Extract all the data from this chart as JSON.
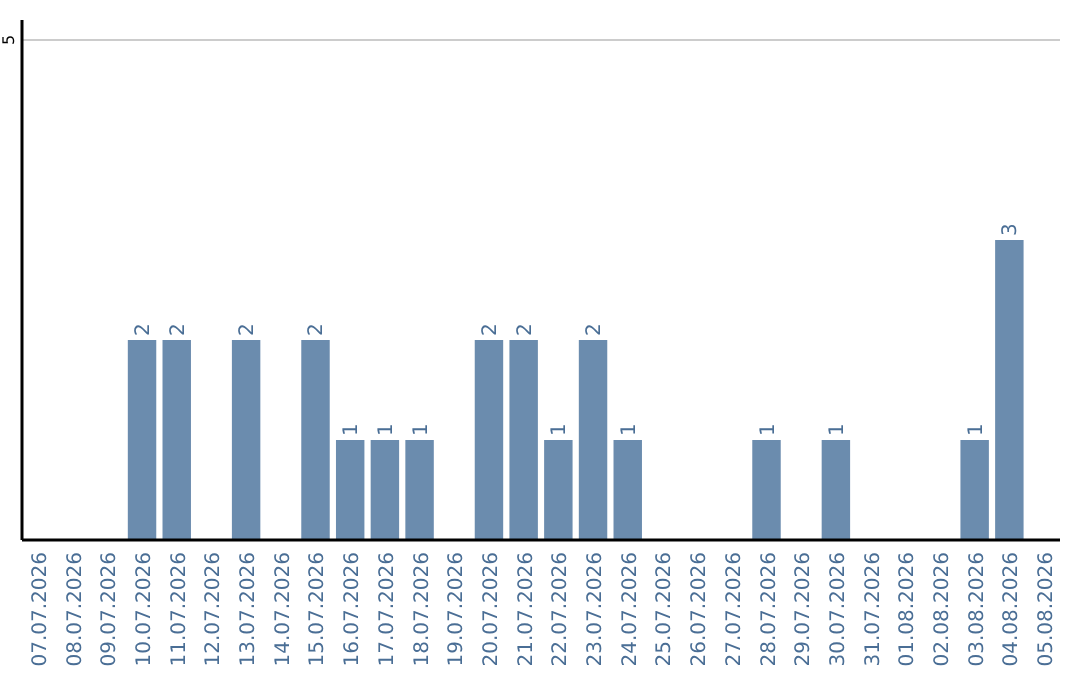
{
  "chart_data": {
    "type": "bar",
    "categories": [
      "07.07.2026",
      "08.07.2026",
      "09.07.2026",
      "10.07.2026",
      "11.07.2026",
      "12.07.2026",
      "13.07.2026",
      "14.07.2026",
      "15.07.2026",
      "16.07.2026",
      "17.07.2026",
      "18.07.2026",
      "19.07.2026",
      "20.07.2026",
      "21.07.2026",
      "22.07.2026",
      "23.07.2026",
      "24.07.2026",
      "25.07.2026",
      "26.07.2026",
      "27.07.2026",
      "28.07.2026",
      "29.07.2026",
      "30.07.2026",
      "31.07.2026",
      "01.08.2026",
      "02.08.2026",
      "03.08.2026",
      "04.08.2026",
      "05.08.2026"
    ],
    "values": [
      null,
      null,
      null,
      2,
      2,
      null,
      2,
      null,
      2,
      1,
      1,
      1,
      null,
      2,
      2,
      1,
      2,
      1,
      null,
      null,
      null,
      1,
      null,
      1,
      null,
      null,
      null,
      1,
      3,
      null
    ],
    "color": "#6b8cae",
    "ylim": [
      0,
      5.2
    ],
    "yticks": [
      5
    ],
    "grid": "y",
    "data_labels": true
  }
}
